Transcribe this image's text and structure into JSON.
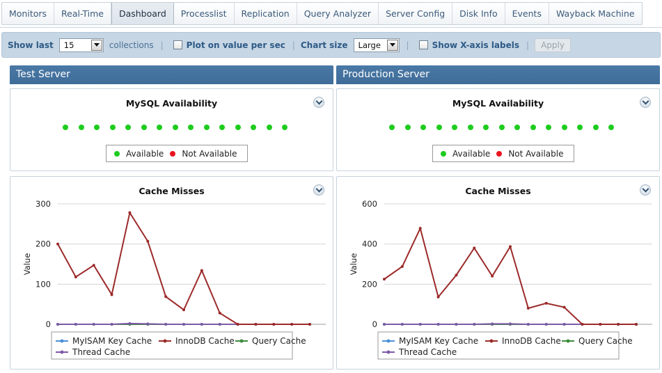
{
  "tabs": [
    {
      "label": "Monitors",
      "active": false
    },
    {
      "label": "Real-Time",
      "active": false
    },
    {
      "label": "Dashboard",
      "active": true
    },
    {
      "label": "Processlist",
      "active": false
    },
    {
      "label": "Replication",
      "active": false
    },
    {
      "label": "Query Analyzer",
      "active": false
    },
    {
      "label": "Server Config",
      "active": false
    },
    {
      "label": "Disk Info",
      "active": false
    },
    {
      "label": "Events",
      "active": false
    },
    {
      "label": "Wayback Machine",
      "active": false
    }
  ],
  "toolbar": {
    "show_last_label": "Show last",
    "show_last_value": "15",
    "collections_text": "collections",
    "sep": "|",
    "plot_label": "Plot on value per sec",
    "plot_checked": false,
    "chart_size_label": "Chart size",
    "chart_size_value": "Large",
    "xaxis_label": "Show X-axis labels",
    "xaxis_checked": false,
    "apply_label": "Apply"
  },
  "servers": [
    {
      "name": "Test Server",
      "availability": {
        "title": "MySQL Availability",
        "points": 15,
        "states": [
          "available",
          "available",
          "available",
          "available",
          "available",
          "available",
          "available",
          "available",
          "available",
          "available",
          "available",
          "available",
          "available",
          "available",
          "available"
        ],
        "legend": [
          {
            "label": "Available",
            "color": "#1ecc1e"
          },
          {
            "label": "Not Available",
            "color": "#e8141e"
          }
        ]
      },
      "cache": {
        "title": "Cache Misses"
      }
    },
    {
      "name": "Production Server",
      "availability": {
        "title": "MySQL Availability",
        "points": 15,
        "states": [
          "available",
          "available",
          "available",
          "available",
          "available",
          "available",
          "available",
          "available",
          "available",
          "available",
          "available",
          "available",
          "available",
          "available",
          "available"
        ],
        "legend": [
          {
            "label": "Available",
            "color": "#1ecc1e"
          },
          {
            "label": "Not Available",
            "color": "#e8141e"
          }
        ]
      },
      "cache": {
        "title": "Cache Misses"
      }
    }
  ],
  "chart_data": [
    {
      "type": "line",
      "title": "Cache Misses",
      "xlabel": "",
      "ylabel": "Value",
      "ylim": [
        0,
        300
      ],
      "yticks": [
        0,
        100,
        200,
        300
      ],
      "x": [
        1,
        2,
        3,
        4,
        5,
        6,
        7,
        8,
        9,
        10,
        11,
        12,
        13,
        14,
        15
      ],
      "grid": true,
      "legend_position": "bottom",
      "series": [
        {
          "name": "MyISAM Key Cache",
          "color": "#4a8fd8",
          "values": [
            0,
            0,
            0,
            0,
            0,
            0,
            0,
            0,
            0,
            0,
            0,
            0,
            0,
            0,
            0
          ]
        },
        {
          "name": "InnoDB Cache",
          "color": "#9c2a2a",
          "values": [
            200,
            118,
            147,
            74,
            278,
            207,
            69,
            36,
            134,
            28,
            0,
            0,
            0,
            0,
            0
          ]
        },
        {
          "name": "Query Cache",
          "color": "#3c8a3c",
          "values": [
            0,
            0,
            0,
            0,
            0,
            0,
            0,
            0,
            0,
            0,
            0,
            0,
            0,
            0,
            0
          ]
        },
        {
          "name": "Thread Cache",
          "color": "#7d5aa6",
          "values": [
            0,
            0,
            0,
            0,
            2,
            1,
            0,
            0,
            0,
            0,
            0,
            0,
            0,
            0,
            0
          ]
        }
      ]
    },
    {
      "type": "line",
      "title": "Cache Misses",
      "xlabel": "",
      "ylabel": "Value",
      "ylim": [
        0,
        600
      ],
      "yticks": [
        0,
        200,
        400,
        600
      ],
      "x": [
        1,
        2,
        3,
        4,
        5,
        6,
        7,
        8,
        9,
        10,
        11,
        12,
        13,
        14,
        15
      ],
      "grid": true,
      "legend_position": "bottom",
      "series": [
        {
          "name": "MyISAM Key Cache",
          "color": "#4a8fd8",
          "values": [
            0,
            0,
            0,
            0,
            0,
            0,
            0,
            0,
            0,
            0,
            0,
            0,
            0,
            0,
            0
          ]
        },
        {
          "name": "InnoDB Cache",
          "color": "#9c2a2a",
          "values": [
            225,
            288,
            478,
            136,
            245,
            380,
            240,
            387,
            80,
            105,
            85,
            0,
            0,
            0,
            0
          ]
        },
        {
          "name": "Query Cache",
          "color": "#3c8a3c",
          "values": [
            0,
            0,
            0,
            0,
            0,
            0,
            0,
            0,
            0,
            0,
            0,
            0,
            0,
            0,
            0
          ]
        },
        {
          "name": "Thread Cache",
          "color": "#7d5aa6",
          "values": [
            0,
            0,
            0,
            0,
            0,
            0,
            2,
            2,
            0,
            0,
            0,
            0,
            0,
            0,
            0
          ]
        }
      ]
    }
  ]
}
